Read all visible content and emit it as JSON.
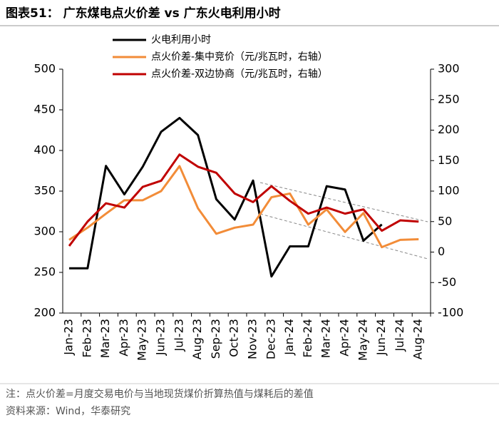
{
  "chart_data": {
    "type": "line",
    "title": "图表51： 广东煤电点火价差 vs 广东火电利用小时",
    "categories": [
      "Jan-23",
      "Feb-23",
      "Mar-23",
      "Apr-23",
      "May-23",
      "Jun-23",
      "Jul-23",
      "Aug-23",
      "Sep-23",
      "Oct-23",
      "Nov-23",
      "Dec-23",
      "Jan-24",
      "Feb-24",
      "Mar-24",
      "Apr-24",
      "May-24",
      "Jun-24",
      "Jul-24",
      "Aug-24"
    ],
    "series": [
      {
        "name": "火电利用小时",
        "color": "#000000",
        "axis": "y",
        "values": [
          255,
          255,
          381,
          346,
          380,
          423,
          440,
          419,
          340,
          315,
          363,
          245,
          282,
          282,
          356,
          352,
          289,
          309,
          null,
          null
        ]
      },
      {
        "name": "点火价差-集中竞价（元/兆瓦时，右轴）",
        "color": "#f28c38",
        "axis": "y2",
        "values": [
          20,
          40,
          63,
          85,
          85,
          100,
          141,
          72,
          30,
          40,
          45,
          90,
          96,
          45,
          70,
          33,
          64,
          8,
          20,
          21
        ]
      },
      {
        "name": "点火价差-双边协商（元/兆瓦时，右轴）",
        "color": "#c00000",
        "axis": "y2",
        "values": [
          10,
          50,
          80,
          73,
          107,
          117,
          160,
          140,
          130,
          96,
          82,
          108,
          84,
          63,
          73,
          63,
          70,
          35,
          52,
          50
        ]
      }
    ],
    "ylim": [
      200,
      500
    ],
    "yticks": [
      200,
      250,
      300,
      350,
      400,
      450,
      500
    ],
    "y2lim": [
      -100,
      300
    ],
    "y2ticks": [
      -100,
      -50,
      0,
      50,
      100,
      150,
      200,
      250,
      300
    ],
    "notes": [
      "注：点火价差=月度交易电价与当地现货煤价折算热值与煤耗后的差值",
      "资料来源：Wind，华泰研究"
    ]
  }
}
